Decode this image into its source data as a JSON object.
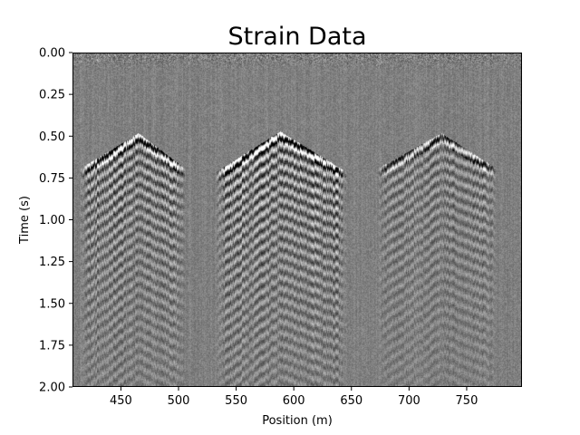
{
  "chart_data": {
    "type": "heatmap",
    "title": "Strain Data",
    "xlabel": "Position (m)",
    "ylabel": "Time (s)",
    "xlim": [
      408,
      798
    ],
    "ylim": [
      2.0,
      0.0
    ],
    "y_inverted": true,
    "grid": false,
    "legend": "none",
    "colormap": "gray",
    "x_ticks": [
      450,
      500,
      550,
      600,
      650,
      700,
      750
    ],
    "y_ticks": [
      0.0,
      0.25,
      0.5,
      0.75,
      1.0,
      1.25,
      1.5,
      1.75,
      2.0
    ],
    "x_tick_labels": [
      "450",
      "500",
      "550",
      "600",
      "650",
      "700",
      "750"
    ],
    "y_tick_labels": [
      "0.00",
      "0.25",
      "0.50",
      "0.75",
      "1.00",
      "1.25",
      "1.50",
      "1.75",
      "2.00"
    ],
    "events": [
      {
        "apex_position_m": 465,
        "apex_time_s": 0.49,
        "left_extent_m": 415,
        "right_extent_m": 505,
        "end_time_s": 0.7,
        "amplitude": 0.9
      },
      {
        "apex_position_m": 588,
        "apex_time_s": 0.48,
        "left_extent_m": 533,
        "right_extent_m": 645,
        "end_time_s": 0.72,
        "amplitude": 1.0
      },
      {
        "apex_position_m": 728,
        "apex_time_s": 0.49,
        "left_extent_m": 673,
        "right_extent_m": 775,
        "end_time_s": 0.7,
        "amplitude": 0.6
      }
    ]
  }
}
